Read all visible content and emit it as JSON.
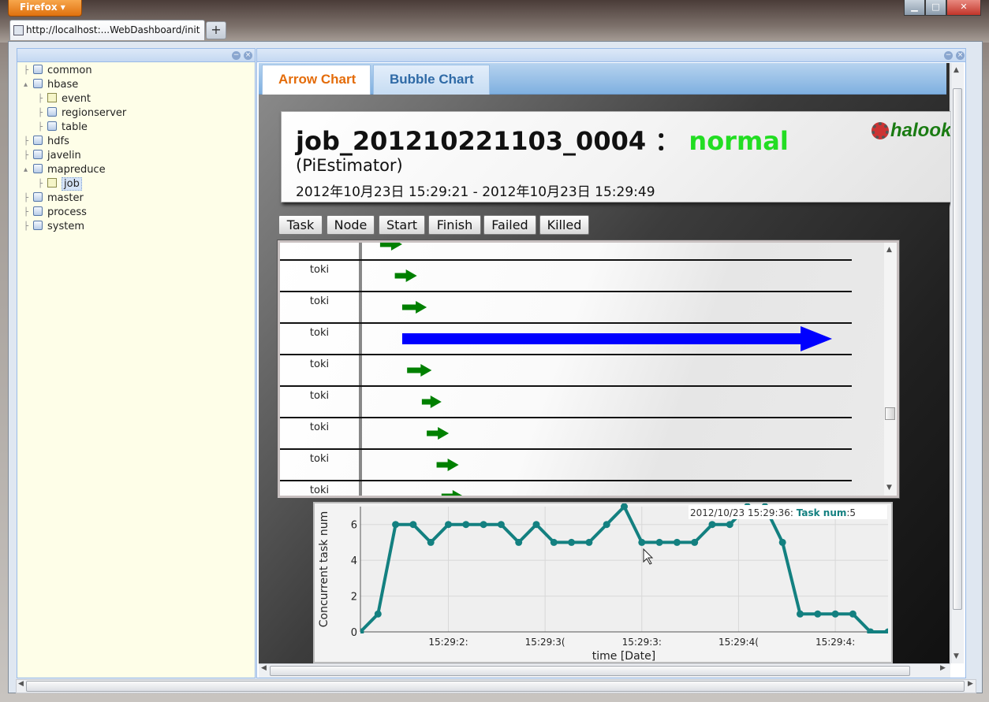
{
  "browser": {
    "app_button": "Firefox",
    "tab_title": "http://localhost:...WebDashboard/init",
    "new_tab": "+",
    "win_min": "▁",
    "win_max": "□",
    "win_close": "✕"
  },
  "tree": {
    "items": [
      {
        "label": "common",
        "level": 0
      },
      {
        "label": "hbase",
        "level": 0
      },
      {
        "label": "event",
        "level": 1
      },
      {
        "label": "regionserver",
        "level": 1
      },
      {
        "label": "table",
        "level": 1
      },
      {
        "label": "hdfs",
        "level": 0
      },
      {
        "label": "javelin",
        "level": 0
      },
      {
        "label": "mapreduce",
        "level": 0
      },
      {
        "label": "job",
        "level": 1
      },
      {
        "label": "master",
        "level": 0
      },
      {
        "label": "process",
        "level": 0
      },
      {
        "label": "system",
        "level": 0
      }
    ]
  },
  "chart_tabs": {
    "arrow": "Arrow Chart",
    "bubble": "Bubble Chart"
  },
  "job": {
    "id": "job_201210221103_0004",
    "separator": "：",
    "status": "normal",
    "name": "(PiEstimator)",
    "time_range": "2012年10月23日 15:29:21 - 2012年10月23日 15:29:49",
    "logo": "halook"
  },
  "sort_buttons": {
    "task": "Task",
    "node": "Node",
    "start": "Start",
    "finish": "Finish",
    "failed": "Failed",
    "killed": "Killed"
  },
  "arrow_chart": {
    "rows": [
      {
        "label": "",
        "start": 0.04,
        "end": 0.085,
        "color": "#008000"
      },
      {
        "label": "toki",
        "start": 0.07,
        "end": 0.115,
        "color": "#008000"
      },
      {
        "label": "toki",
        "start": 0.085,
        "end": 0.135,
        "color": "#008000"
      },
      {
        "label": "toki",
        "start": 0.085,
        "end": 0.96,
        "color": "#0000ff"
      },
      {
        "label": "toki",
        "start": 0.095,
        "end": 0.145,
        "color": "#008000"
      },
      {
        "label": "toki",
        "start": 0.125,
        "end": 0.165,
        "color": "#008000"
      },
      {
        "label": "toki",
        "start": 0.135,
        "end": 0.18,
        "color": "#008000"
      },
      {
        "label": "toki",
        "start": 0.155,
        "end": 0.2,
        "color": "#008000"
      },
      {
        "label": "toki",
        "start": 0.165,
        "end": 0.21,
        "color": "#008000"
      }
    ]
  },
  "chart_data": {
    "type": "line",
    "title": "",
    "xlabel": "time [Date]",
    "ylabel": "Concurrent task num",
    "x_ticks": [
      "15:29:2:",
      "15:29:3(",
      "15:29:3:",
      "15:29:4(",
      "15:29:4:"
    ],
    "y_ticks": [
      "0",
      "2",
      "4",
      "6"
    ],
    "ylim": [
      0,
      7
    ],
    "series": [
      {
        "name": "Task num",
        "color": "#138080",
        "values": [
          0,
          1,
          6,
          6,
          5,
          6,
          6,
          6,
          6,
          5,
          6,
          5,
          5,
          5,
          6,
          7,
          5,
          5,
          5,
          5,
          6,
          6,
          7,
          7,
          5,
          1,
          1,
          1,
          1,
          0,
          0
        ]
      }
    ],
    "tooltip": {
      "time": "2012/10/23 15:29:36:",
      "series_label": "Task num",
      "value": ":5"
    }
  }
}
